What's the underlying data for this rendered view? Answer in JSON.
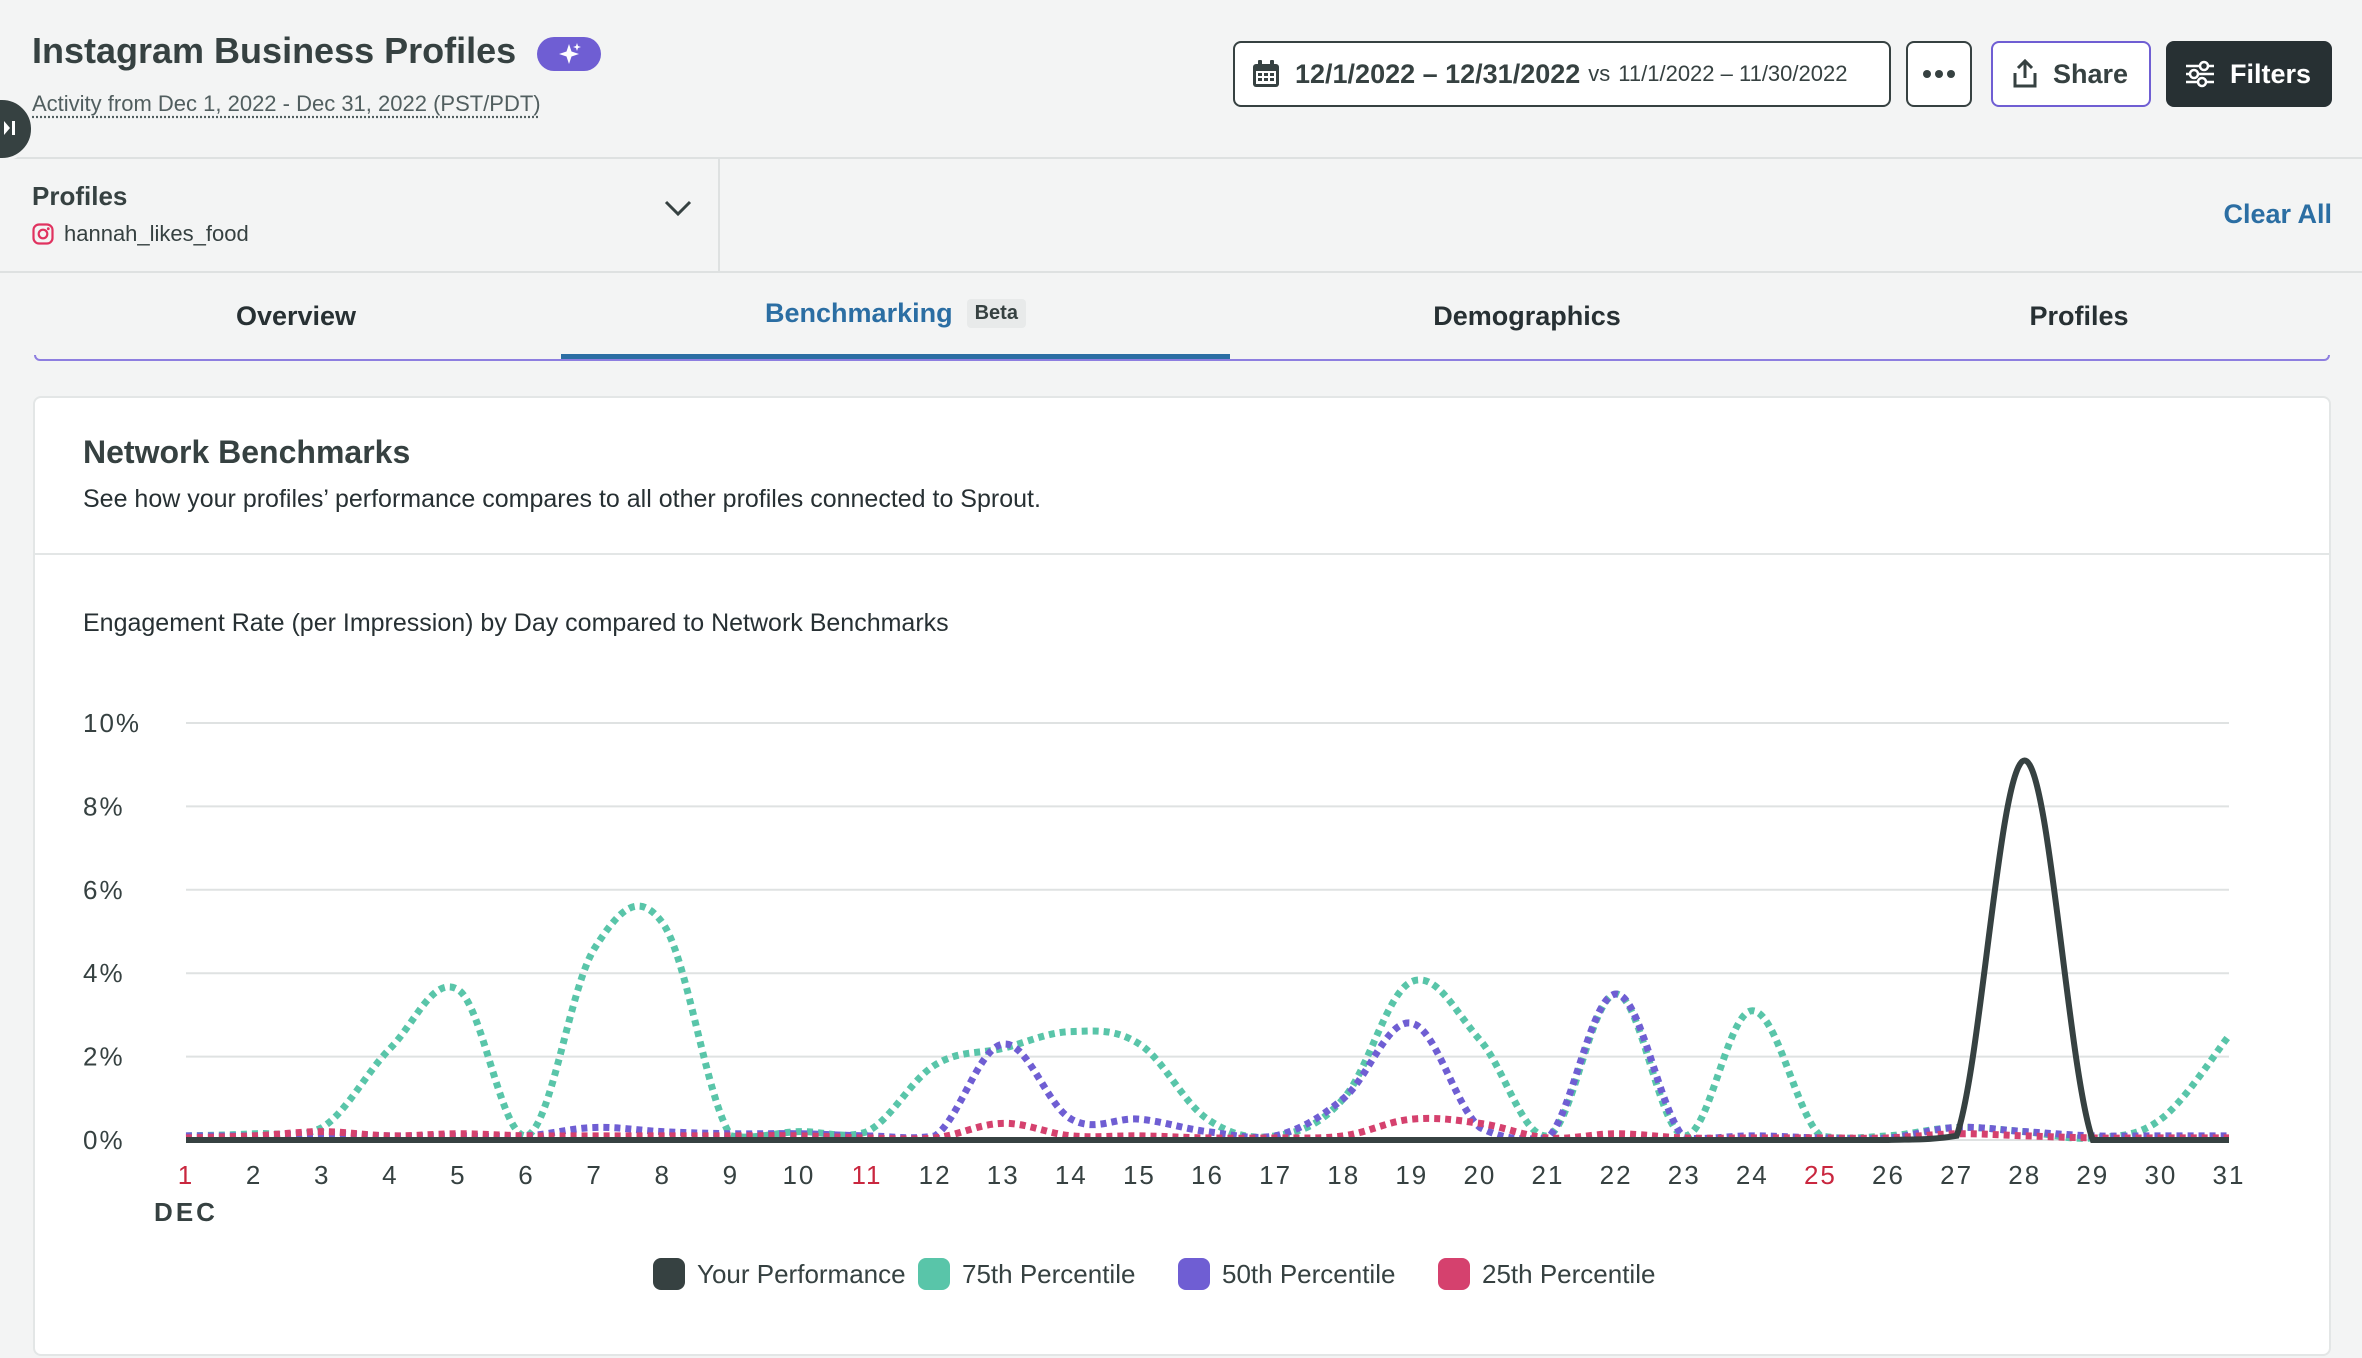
{
  "header": {
    "title": "Instagram Business Profiles",
    "subtitle": "Activity from Dec 1, 2022 - Dec 31, 2022 (PST/PDT)",
    "date_range": "12/1/2022 – 12/31/2022",
    "compare_prefix": "vs",
    "compare_range": "11/1/2022 – 11/30/2022",
    "share_label": "Share",
    "filters_label": "Filters",
    "ai_icon": "sparkle-icon"
  },
  "filters": {
    "profiles_label": "Profiles",
    "profile_name": "hannah_likes_food",
    "clear_all": "Clear All"
  },
  "tabs": [
    {
      "label": "Overview"
    },
    {
      "label": "Benchmarking",
      "badge": "Beta"
    },
    {
      "label": "Demographics"
    },
    {
      "label": "Profiles"
    }
  ],
  "card": {
    "title": "Network Benchmarks",
    "description": "See how your profiles’ performance compares to all other profiles connected to Sprout."
  },
  "chart_data": {
    "type": "line",
    "title": "Engagement Rate (per Impression) by Day compared to Network Benchmarks",
    "x_month_label": "DEC",
    "x": [
      1,
      2,
      3,
      4,
      5,
      6,
      7,
      8,
      9,
      10,
      11,
      12,
      13,
      14,
      15,
      16,
      17,
      18,
      19,
      20,
      21,
      22,
      23,
      24,
      25,
      26,
      27,
      28,
      29,
      30,
      31
    ],
    "x_labels": [
      "1",
      "2",
      "3",
      "4",
      "5",
      "6",
      "7",
      "8",
      "9",
      "10",
      "11",
      "12",
      "13",
      "14",
      "15",
      "16",
      "17",
      "18",
      "19",
      "20",
      "21",
      "22",
      "23",
      "24",
      "25",
      "26",
      "27",
      "28",
      "29",
      "30",
      "31"
    ],
    "weekend_highlight_days": [
      1,
      11,
      25
    ],
    "y_ticks": [
      "0%",
      "2%",
      "4%",
      "6%",
      "8%",
      "10%"
    ],
    "ylim": [
      0,
      10
    ],
    "grid": true,
    "legend_position": "bottom-center",
    "series": [
      {
        "name": "Your Performance",
        "color": "#364141",
        "style": "solid",
        "values": [
          0,
          0,
          0,
          0,
          0,
          0,
          0,
          0,
          0,
          0,
          0,
          0,
          0,
          0,
          0,
          0,
          0,
          0,
          0,
          0,
          0,
          0,
          0,
          0,
          0,
          0,
          0.1,
          9.1,
          0,
          0,
          0
        ]
      },
      {
        "name": "75th Percentile",
        "color": "#59c5a9",
        "style": "dotted",
        "values": [
          0.1,
          0.15,
          0.3,
          2.2,
          3.6,
          0.1,
          4.6,
          5.2,
          0.1,
          0.2,
          0.2,
          1.8,
          2.2,
          2.6,
          2.3,
          0.5,
          0.1,
          1.0,
          3.8,
          2.4,
          0.1,
          3.5,
          0.1,
          3.1,
          0.1,
          0.1,
          0.3,
          0.2,
          0.05,
          0.5,
          2.5
        ]
      },
      {
        "name": "50th Percentile",
        "color": "#6f5ed3",
        "style": "dotted",
        "values": [
          0.1,
          0.1,
          0.15,
          0.1,
          0.1,
          0.1,
          0.3,
          0.2,
          0.15,
          0.15,
          0.1,
          0.1,
          2.3,
          0.5,
          0.5,
          0.2,
          0.1,
          1.0,
          2.8,
          0.3,
          0.05,
          3.5,
          0.05,
          0.1,
          0.05,
          0.05,
          0.3,
          0.2,
          0.1,
          0.1,
          0.1
        ]
      },
      {
        "name": "25th Percentile",
        "color": "#d5416e",
        "style": "dotted",
        "values": [
          0.05,
          0.1,
          0.2,
          0.1,
          0.15,
          0.1,
          0.1,
          0.1,
          0.1,
          0.1,
          0.05,
          0.05,
          0.4,
          0.1,
          0.1,
          0.05,
          0.05,
          0.1,
          0.5,
          0.4,
          0.05,
          0.15,
          0.05,
          0.05,
          0.05,
          0.05,
          0.15,
          0.1,
          0.05,
          0.05,
          0.05
        ]
      }
    ]
  }
}
